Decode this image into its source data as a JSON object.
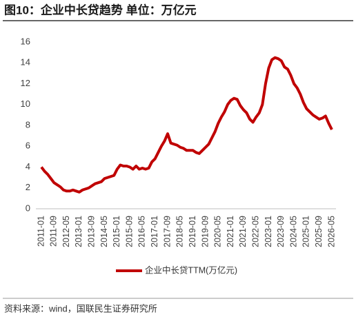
{
  "chart_data": {
    "type": "line",
    "title": "图10：企业中长贷趋势 单位：万亿元",
    "source": "资料来源：wind，国联民生证券研究所",
    "categories": [
      "2011-01",
      null,
      null,
      null,
      "2011-09",
      null,
      null,
      null,
      "2012-05",
      null,
      null,
      null,
      "2013-01",
      null,
      null,
      null,
      "2013-09",
      null,
      null,
      null,
      "2014-05",
      null,
      null,
      null,
      "2015-01",
      null,
      null,
      null,
      "2015-09",
      null,
      null,
      null,
      "2016-05",
      null,
      null,
      null,
      "2017-01",
      null,
      null,
      null,
      "2017-09",
      null,
      null,
      null,
      "2018-05",
      null,
      null,
      null,
      "2019-01",
      null,
      null,
      null,
      "2019-09",
      null,
      null,
      null,
      "2020-05",
      null,
      null,
      null,
      "2021-01",
      null,
      null,
      null,
      "2021-09",
      null,
      null,
      null,
      "2022-05",
      null,
      null,
      null,
      "2023-01",
      null,
      null,
      null,
      "2023-09",
      null,
      null,
      null,
      "2024-05",
      null,
      null,
      null,
      "2025-01",
      null,
      null,
      null,
      "2025-09",
      null,
      null,
      null,
      "2026-05"
    ],
    "series": [
      {
        "name": "企业中长贷TTM(万亿元)",
        "color": "#c00000",
        "values": [
          4.0,
          3.6,
          3.3,
          2.9,
          2.5,
          2.3,
          2.1,
          1.8,
          1.7,
          1.7,
          1.8,
          1.7,
          1.6,
          1.8,
          1.9,
          2.0,
          2.2,
          2.4,
          2.5,
          2.6,
          2.9,
          3.0,
          3.1,
          3.2,
          3.8,
          4.2,
          4.1,
          4.1,
          4.0,
          3.8,
          4.1,
          3.8,
          3.9,
          3.8,
          3.9,
          4.5,
          4.8,
          5.4,
          6.0,
          6.5,
          7.2,
          6.3,
          6.2,
          6.1,
          5.9,
          5.8,
          5.6,
          5.6,
          5.6,
          5.4,
          5.3,
          5.6,
          5.9,
          6.2,
          6.8,
          7.4,
          8.2,
          8.8,
          9.3,
          10.0,
          10.4,
          10.6,
          10.5,
          9.9,
          9.5,
          9.2,
          8.6,
          8.3,
          8.8,
          9.2,
          10.0,
          12.0,
          13.5,
          14.3,
          14.5,
          14.4,
          14.2,
          13.6,
          13.4,
          12.8,
          12.0,
          11.6,
          11.0,
          10.2,
          9.6,
          9.3,
          9.0,
          8.8,
          8.6,
          8.7,
          8.9,
          8.2,
          7.6
        ]
      }
    ],
    "ylim": [
      0,
      16
    ],
    "yticks": [
      0,
      2,
      4,
      6,
      8,
      10,
      12,
      14,
      16
    ],
    "grid": false
  }
}
